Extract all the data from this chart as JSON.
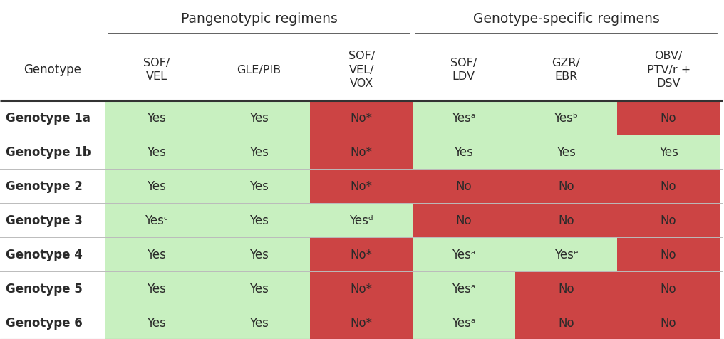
{
  "pangenotypic_label": "Pangenotypic regimens",
  "genotype_specific_label": "Genotype-specific regimens",
  "col_headers": [
    "SOF/\nVEL",
    "GLE/PIB",
    "SOF/\nVEL/\nVOX",
    "SOF/\nLDV",
    "GZR/\nEBR",
    "OBV/\nPTV/r +\nDSV"
  ],
  "row_labels": [
    "Genotype 1a",
    "Genotype 1b",
    "Genotype 2",
    "Genotype 3",
    "Genotype 4",
    "Genotype 5",
    "Genotype 6"
  ],
  "cell_texts": [
    [
      "Yes",
      "Yes",
      "No*",
      "Yesᵃ",
      "Yesᵇ",
      "No"
    ],
    [
      "Yes",
      "Yes",
      "No*",
      "Yes",
      "Yes",
      "Yes"
    ],
    [
      "Yes",
      "Yes",
      "No*",
      "No",
      "No",
      "No"
    ],
    [
      "Yesᶜ",
      "Yes",
      "Yesᵈ",
      "No",
      "No",
      "No"
    ],
    [
      "Yes",
      "Yes",
      "No*",
      "Yesᵃ",
      "Yesᵉ",
      "No"
    ],
    [
      "Yes",
      "Yes",
      "No*",
      "Yesᵃ",
      "No",
      "No"
    ],
    [
      "Yes",
      "Yes",
      "No*",
      "Yesᵃ",
      "No",
      "No"
    ]
  ],
  "cell_colors": [
    [
      "#c8f0c0",
      "#c8f0c0",
      "#cc4444",
      "#c8f0c0",
      "#c8f0c0",
      "#cc4444"
    ],
    [
      "#c8f0c0",
      "#c8f0c0",
      "#cc4444",
      "#c8f0c0",
      "#c8f0c0",
      "#c8f0c0"
    ],
    [
      "#c8f0c0",
      "#c8f0c0",
      "#cc4444",
      "#cc4444",
      "#cc4444",
      "#cc4444"
    ],
    [
      "#c8f0c0",
      "#c8f0c0",
      "#c8f0c0",
      "#cc4444",
      "#cc4444",
      "#cc4444"
    ],
    [
      "#c8f0c0",
      "#c8f0c0",
      "#cc4444",
      "#c8f0c0",
      "#c8f0c0",
      "#cc4444"
    ],
    [
      "#c8f0c0",
      "#c8f0c0",
      "#cc4444",
      "#c8f0c0",
      "#cc4444",
      "#cc4444"
    ],
    [
      "#c8f0c0",
      "#c8f0c0",
      "#cc4444",
      "#c8f0c0",
      "#cc4444",
      "#cc4444"
    ]
  ],
  "green": "#c8f0c0",
  "red": "#cc4444",
  "white": "#ffffff",
  "text_color": "#2a2a2a",
  "figsize": [
    10.16,
    4.77
  ],
  "dpi": 100
}
